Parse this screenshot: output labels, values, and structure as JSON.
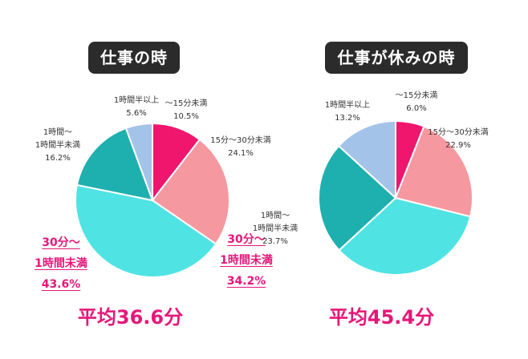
{
  "chart_data": [
    {
      "type": "pie",
      "title": "仕事の時",
      "average": "平均36.6分",
      "categories": [
        "～15分未満",
        "15分～30分未満",
        "30分～1時間未満",
        "1時間～1時間半未満",
        "1時間半以上"
      ],
      "values": [
        10.5,
        24.1,
        43.6,
        16.2,
        5.6
      ],
      "value_labels": [
        "10.5%",
        "24.1%",
        "43.6%",
        "16.2%",
        "5.6%"
      ],
      "label_lines": [
        [
          "～15分未満"
        ],
        [
          "15分～30分未満"
        ],
        [
          "30分～",
          "1時間未満"
        ],
        [
          "1時間～",
          "1時間半未満"
        ],
        [
          "1時間半以上"
        ]
      ],
      "colors": [
        "#f0166e",
        "#f6989f",
        "#4fe3e3",
        "#1eb0ae",
        "#a4c3e9"
      ],
      "highlight_index": 2
    },
    {
      "type": "pie",
      "title": "仕事が休みの時",
      "average": "平均45.4分",
      "categories": [
        "～15分未満",
        "15分～30分未満",
        "30分～1時間未満",
        "1時間～1時間半未満",
        "1時間半以上"
      ],
      "values": [
        6.0,
        22.9,
        34.2,
        23.7,
        13.2
      ],
      "value_labels": [
        "6.0%",
        "22.9%",
        "34.2%",
        "23.7%",
        "13.2%"
      ],
      "label_lines": [
        [
          "～15分未満"
        ],
        [
          "15分～30分未満"
        ],
        [
          "30分～",
          "1時間未満"
        ],
        [
          "1時間～",
          "1時間半未満"
        ],
        [
          "1時間半以上"
        ]
      ],
      "colors": [
        "#f0166e",
        "#f6989f",
        "#4fe3e3",
        "#1eb0ae",
        "#a4c3e9"
      ],
      "highlight_index": 2
    }
  ]
}
